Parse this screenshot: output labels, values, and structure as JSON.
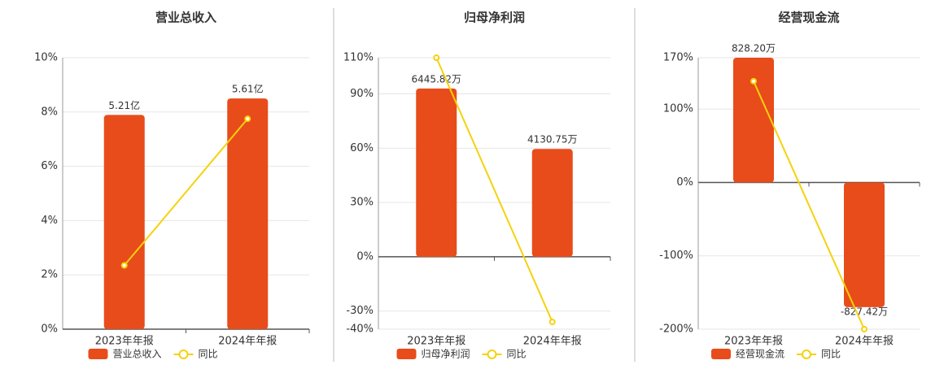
{
  "chart_data": [
    {
      "type": "bar",
      "title": "营业总收入",
      "categories": [
        "2023年年报",
        "2024年年报"
      ],
      "series": [
        {
          "name": "营业总收入",
          "type": "bar",
          "color": "#e84c1a",
          "values": [
            5.21,
            5.61
          ],
          "value_labels": [
            "5.21亿",
            "5.61亿"
          ],
          "axis": "y2"
        },
        {
          "name": "同比",
          "type": "line",
          "color": "#f5d20c",
          "values": [
            2.35,
            7.75
          ]
        }
      ],
      "ylim": [
        0,
        10
      ],
      "yticks": [
        {
          "value": 0,
          "label": "0%"
        },
        {
          "value": 2,
          "label": "2%"
        },
        {
          "value": 4,
          "label": "4%"
        },
        {
          "value": 6,
          "label": "6%"
        },
        {
          "value": 8,
          "label": "8%"
        },
        {
          "value": 10,
          "label": "10%"
        }
      ],
      "y2lim": [
        0,
        6.6
      ],
      "grid": true
    },
    {
      "type": "bar",
      "title": "归母净利润",
      "categories": [
        "2023年年报",
        "2024年年报"
      ],
      "series": [
        {
          "name": "归母净利润",
          "type": "bar",
          "color": "#e84c1a",
          "values": [
            6445.82,
            4130.75
          ],
          "value_labels": [
            "6445.82万",
            "4130.75万"
          ],
          "axis": "y2"
        },
        {
          "name": "同比",
          "type": "line",
          "color": "#f5d20c",
          "values": [
            110,
            -36
          ]
        }
      ],
      "ylim": [
        -40,
        110
      ],
      "yticks": [
        {
          "value": -40,
          "label": "-40%"
        },
        {
          "value": -30,
          "label": "-30%"
        },
        {
          "value": 0,
          "label": "0%"
        },
        {
          "value": 30,
          "label": "30%"
        },
        {
          "value": 60,
          "label": "60%"
        },
        {
          "value": 90,
          "label": "90%"
        },
        {
          "value": 110,
          "label": "110%"
        }
      ],
      "y2lim": [
        -2772,
        7624
      ],
      "grid": true
    },
    {
      "type": "bar",
      "title": "经营现金流",
      "categories": [
        "2023年年报",
        "2024年年报"
      ],
      "series": [
        {
          "name": "经营现金流",
          "type": "bar",
          "color": "#e84c1a",
          "values": [
            828.2,
            -827.42
          ],
          "value_labels": [
            "828.20万",
            "-827.42万"
          ],
          "axis": "y2"
        },
        {
          "name": "同比",
          "type": "line",
          "color": "#f5d20c",
          "values": [
            138,
            -200
          ]
        }
      ],
      "ylim": [
        -200,
        170
      ],
      "yticks": [
        {
          "value": -200,
          "label": "-200%"
        },
        {
          "value": -100,
          "label": "-100%"
        },
        {
          "value": 0,
          "label": "0%"
        },
        {
          "value": 100,
          "label": "100%"
        },
        {
          "value": 170,
          "label": "170%"
        }
      ],
      "y2lim": [
        -974,
        828.2
      ],
      "grid": true
    }
  ]
}
